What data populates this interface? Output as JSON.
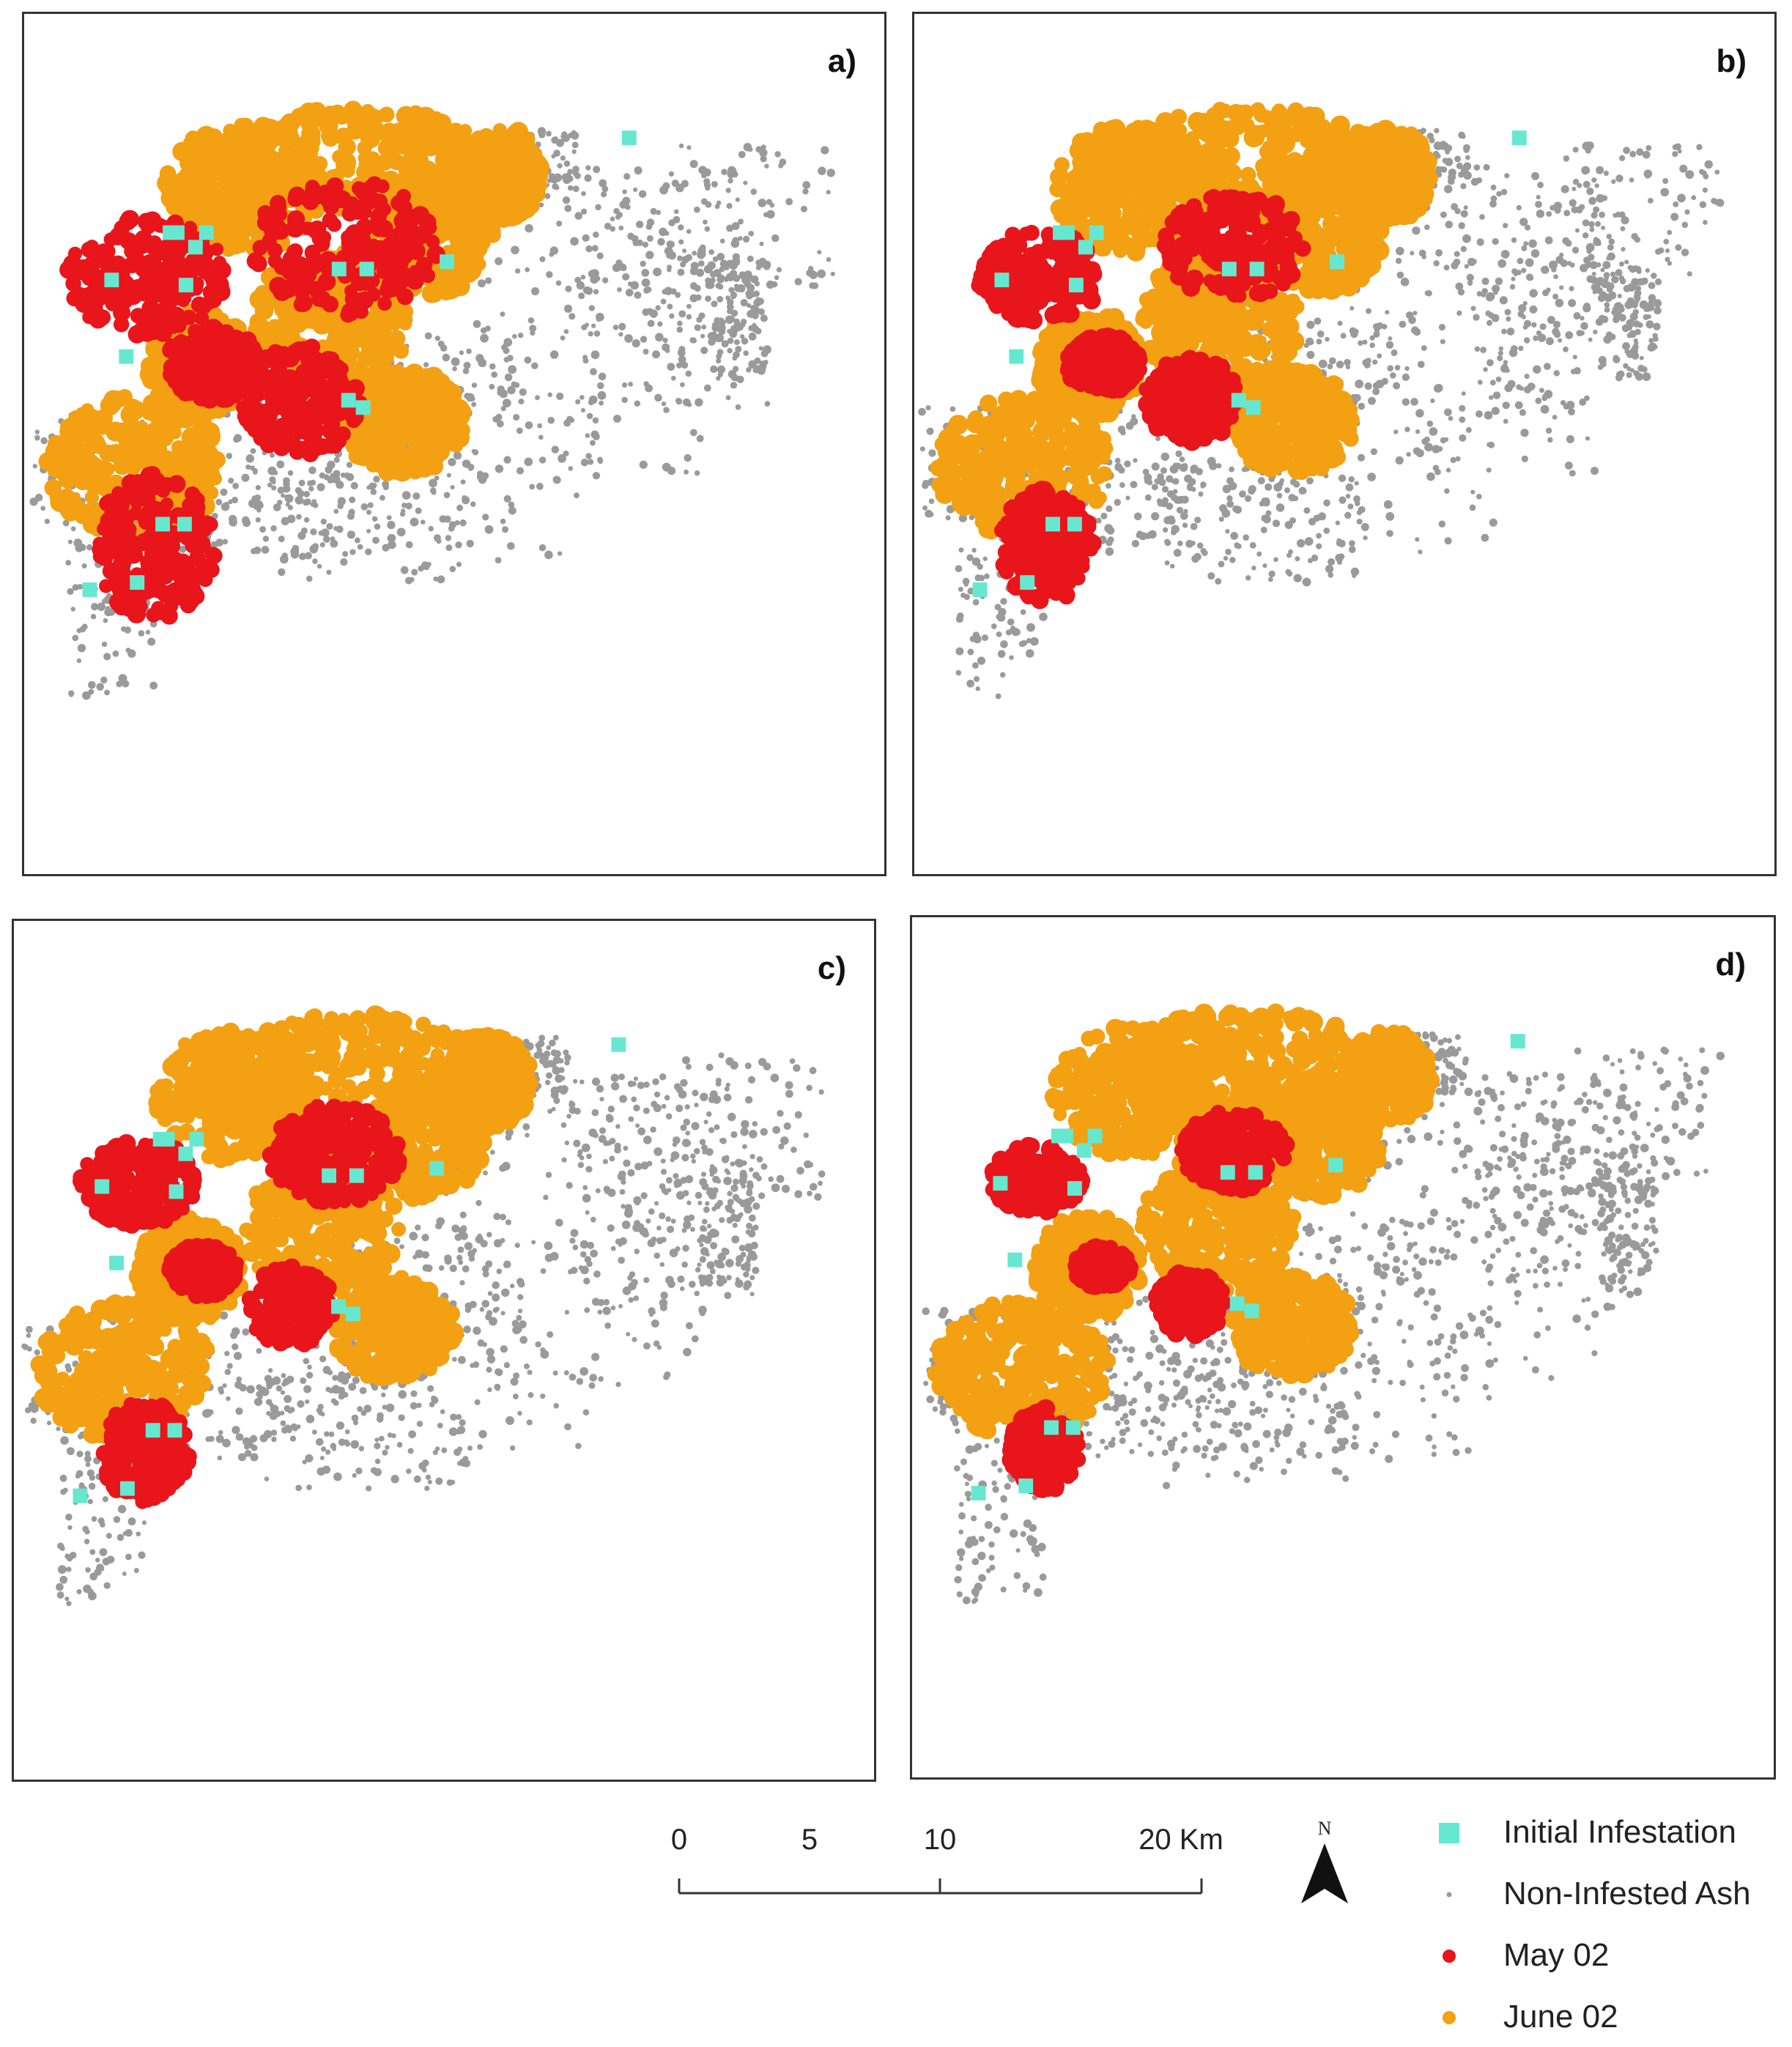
{
  "panels": [
    {
      "id": "a",
      "label": "a)"
    },
    {
      "id": "b",
      "label": "b)"
    },
    {
      "id": "c",
      "label": "c)"
    },
    {
      "id": "d",
      "label": "d)"
    }
  ],
  "scale_bar": {
    "ticks": [
      "0",
      "5",
      "10",
      "20 Km"
    ]
  },
  "north_arrow": {
    "label": "N",
    "icon": "north-arrow-icon"
  },
  "legend": {
    "items": [
      {
        "label": "Initial Infestation",
        "color": "#66e8d0",
        "symbol": "square"
      },
      {
        "label": "Non-Infested Ash",
        "color": "#9a9a9a",
        "symbol": "small-dot"
      },
      {
        "label": "May 02",
        "color": "#e8151b",
        "symbol": "dot"
      },
      {
        "label": "June 02",
        "color": "#f3a012",
        "symbol": "dot"
      }
    ]
  },
  "colors": {
    "initial": "#66e8d0",
    "non_infested": "#9a9a9a",
    "may": "#e8151b",
    "june": "#f3a012"
  }
}
